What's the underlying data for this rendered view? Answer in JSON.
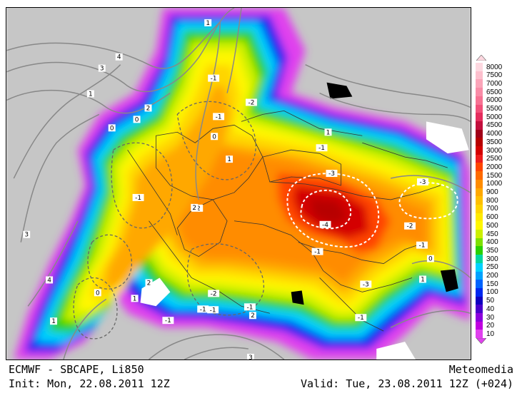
{
  "title_line": "ECMWF - SBCAPE, Li850",
  "init_line": "Init: Mon, 22.08.2011 12Z",
  "brand": "Meteomedia",
  "valid_line": "Valid: Tue, 23.08.2011 12Z (+024)",
  "legend": {
    "values": [
      "8000",
      "7500",
      "7000",
      "6500",
      "6000",
      "5500",
      "5000",
      "4500",
      "4000",
      "3500",
      "3000",
      "2500",
      "2000",
      "1500",
      "1000",
      "900",
      "800",
      "700",
      "600",
      "500",
      "450",
      "400",
      "350",
      "300",
      "250",
      "200",
      "150",
      "100",
      "50",
      "40",
      "30",
      "20",
      "10"
    ],
    "colors": [
      "#fdd8e0",
      "#fcbfcd",
      "#fba5b9",
      "#f98ca7",
      "#f77293",
      "#f2507a",
      "#e52d5d",
      "#c20f3d",
      "#a00018",
      "#b70000",
      "#d40000",
      "#ed1c1c",
      "#ff4500",
      "#ff6a00",
      "#ff8c00",
      "#ffa800",
      "#ffbf00",
      "#ffd500",
      "#ffea00",
      "#fff700",
      "#ccf000",
      "#7ee000",
      "#2ad000",
      "#00d6a0",
      "#00d2ff",
      "#00a2ff",
      "#0064ff",
      "#0028f0",
      "#1000c0",
      "#4a00cc",
      "#8c00dd",
      "#c000e0",
      "#e040ee"
    ]
  },
  "contour_labels": [
    "4",
    "3",
    "1",
    "1",
    "2",
    "0",
    "0",
    "-1",
    "0",
    "-2",
    "-1",
    "1",
    "-1",
    "-2",
    "-1",
    "-3",
    "-3",
    "-4",
    "-2",
    "-1",
    "-1",
    "0",
    "1",
    "-1",
    "-1",
    "-3",
    "-1",
    "2",
    "4",
    "0",
    "2",
    "1",
    "-1",
    "-2",
    "-1",
    "2",
    "1",
    "3",
    "3",
    "1"
  ]
}
